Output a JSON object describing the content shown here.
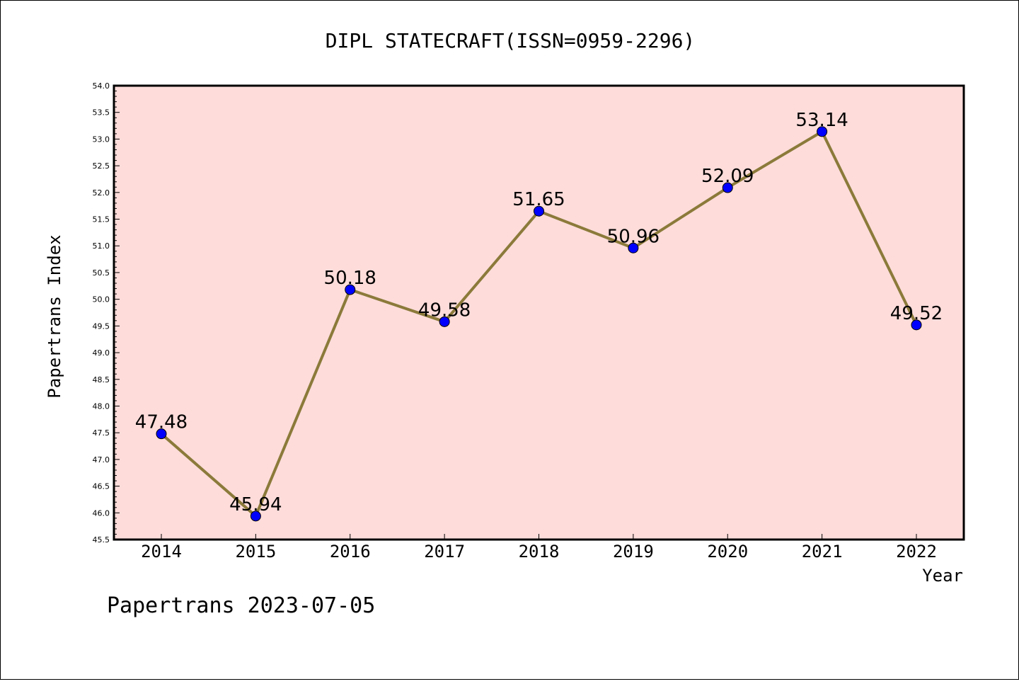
{
  "footer": "Papertrans 2023-07-05",
  "colors": {
    "plot_background": "#fddcda",
    "line": "#8b7a3a",
    "marker": "#0000ff"
  },
  "chart_data": {
    "type": "line",
    "title": "DIPL STATECRAFT(ISSN=0959-2296)",
    "xlabel": "Year",
    "ylabel": "Papertrans Index",
    "categories": [
      "2014",
      "2015",
      "2016",
      "2017",
      "2018",
      "2019",
      "2020",
      "2021",
      "2022"
    ],
    "values": [
      47.48,
      45.94,
      50.18,
      49.58,
      51.65,
      50.96,
      52.09,
      53.14,
      49.52
    ],
    "labels": [
      "47.48",
      "45.94",
      "50.18",
      "49.58",
      "51.65",
      "50.96",
      "52.09",
      "53.14",
      "49.52"
    ],
    "ylim": [
      45.5,
      54.0
    ],
    "yticks": [
      "45.5",
      "46.0",
      "46.5",
      "47.0",
      "47.5",
      "48.0",
      "48.5",
      "49.0",
      "49.5",
      "50.0",
      "50.5",
      "51.0",
      "51.5",
      "52.0",
      "52.5",
      "53.0",
      "53.5",
      "54.0"
    ],
    "grid": false,
    "legend": "none"
  }
}
